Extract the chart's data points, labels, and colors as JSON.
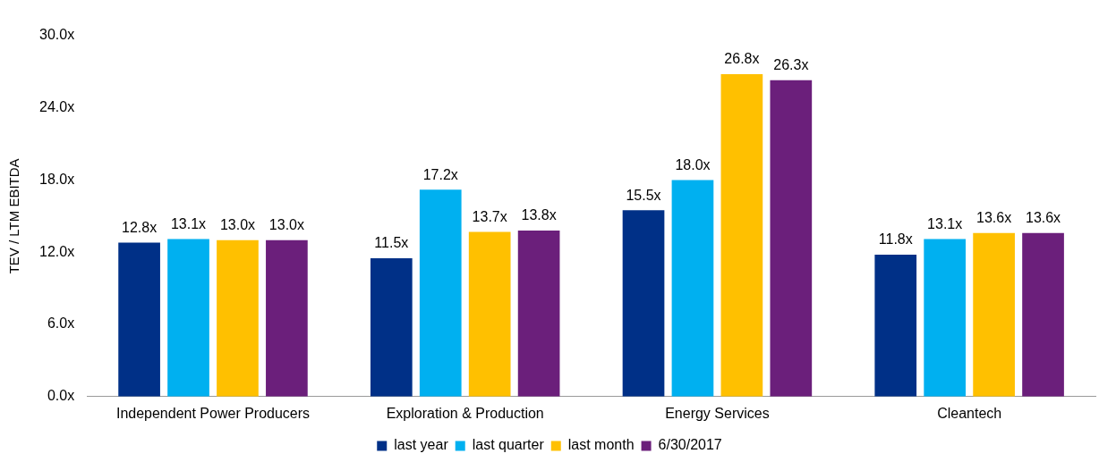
{
  "chart_data": {
    "type": "bar",
    "ylabel": "TEV / LTM EBITDA",
    "categories": [
      "Independent Power Producers",
      "Exploration & Production",
      "Energy Services",
      "Cleantech"
    ],
    "series": [
      {
        "name": "last year",
        "color": "#003087",
        "values": [
          12.8,
          11.5,
          15.5,
          11.8
        ],
        "value_labels": [
          "12.8x",
          "11.5x",
          "15.5x",
          "11.8x"
        ]
      },
      {
        "name": "last quarter",
        "color": "#00b0f0",
        "values": [
          13.1,
          17.2,
          18.0,
          13.1
        ],
        "value_labels": [
          "13.1x",
          "17.2x",
          "18.0x",
          "13.1x"
        ]
      },
      {
        "name": "last month",
        "color": "#ffc000",
        "values": [
          13.0,
          13.7,
          26.8,
          13.6
        ],
        "value_labels": [
          "13.0x",
          "13.7x",
          "26.8x",
          "13.6x"
        ]
      },
      {
        "name": "6/30/2017",
        "color": "#6b1f7b",
        "values": [
          13.0,
          13.8,
          26.3,
          13.6
        ],
        "value_labels": [
          "13.0x",
          "13.8x",
          "26.3x",
          "13.6x"
        ]
      }
    ],
    "ylim": [
      0,
      30
    ],
    "yticks": [
      {
        "value": 0,
        "label": "0.0x"
      },
      {
        "value": 6,
        "label": "6.0x"
      },
      {
        "value": 12,
        "label": "12.0x"
      },
      {
        "value": 18,
        "label": "18.0x"
      },
      {
        "value": 24,
        "label": "24.0x"
      },
      {
        "value": 30,
        "label": "30.0x"
      }
    ],
    "grid": false,
    "legend": "bottom"
  }
}
